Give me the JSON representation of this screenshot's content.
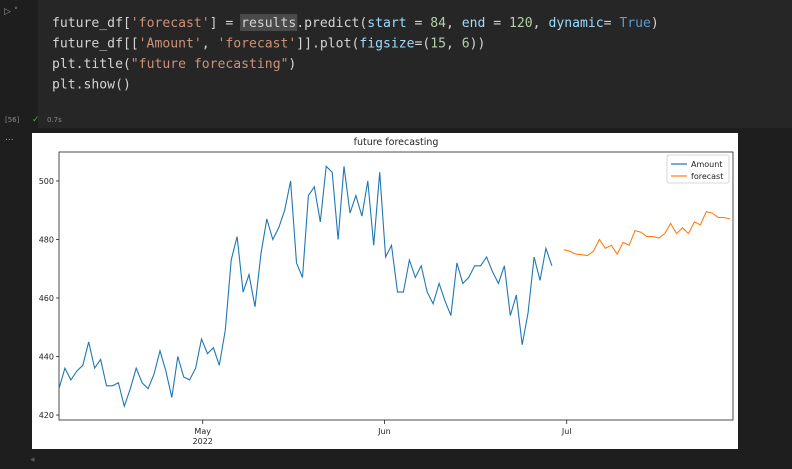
{
  "cell": {
    "lines": [
      [
        {
          "text": "future_df[",
          "color": "#d4d4d4"
        },
        {
          "text": "'forecast'",
          "color": "#ce9178"
        },
        {
          "text": "] = ",
          "color": "#d4d4d4"
        },
        {
          "text": "results",
          "color": "#d4d4d4",
          "highlight": true
        },
        {
          "text": ".predict(",
          "color": "#d4d4d4"
        },
        {
          "text": "start",
          "color": "#9cdcfe"
        },
        {
          "text": " = ",
          "color": "#d4d4d4"
        },
        {
          "text": "84",
          "color": "#b5cea8"
        },
        {
          "text": ", ",
          "color": "#d4d4d4"
        },
        {
          "text": "end",
          "color": "#9cdcfe"
        },
        {
          "text": " = ",
          "color": "#d4d4d4"
        },
        {
          "text": "120",
          "color": "#b5cea8"
        },
        {
          "text": ", ",
          "color": "#d4d4d4"
        },
        {
          "text": "dynamic",
          "color": "#9cdcfe"
        },
        {
          "text": "= ",
          "color": "#d4d4d4"
        },
        {
          "text": "True",
          "color": "#569cd6"
        },
        {
          "text": ")",
          "color": "#d4d4d4"
        }
      ],
      [
        {
          "text": "future_df[[",
          "color": "#d4d4d4"
        },
        {
          "text": "'Amount'",
          "color": "#ce9178"
        },
        {
          "text": ", ",
          "color": "#d4d4d4"
        },
        {
          "text": "'forecast'",
          "color": "#ce9178"
        },
        {
          "text": "]].plot(",
          "color": "#d4d4d4"
        },
        {
          "text": "figsize",
          "color": "#9cdcfe"
        },
        {
          "text": "=(",
          "color": "#d4d4d4"
        },
        {
          "text": "15",
          "color": "#b5cea8"
        },
        {
          "text": ", ",
          "color": "#d4d4d4"
        },
        {
          "text": "6",
          "color": "#b5cea8"
        },
        {
          "text": "))",
          "color": "#d4d4d4"
        }
      ],
      [
        {
          "text": "plt.title(",
          "color": "#d4d4d4"
        },
        {
          "text": "\"future forecasting\"",
          "color": "#ce9178"
        },
        {
          "text": ")",
          "color": "#d4d4d4"
        }
      ],
      [
        {
          "text": "plt.show()",
          "color": "#d4d4d4"
        }
      ]
    ],
    "exec_count": "[56]",
    "duration": "0.7s"
  },
  "output_prefix": "...",
  "chart_data": {
    "type": "line",
    "title": "future forecasting",
    "xlim": [
      0,
      113.5
    ],
    "ylim": [
      418.3,
      509.9
    ],
    "yticks": [
      420,
      440,
      460,
      480,
      500
    ],
    "xticks": [
      {
        "value": 24.2,
        "label": "May"
      },
      {
        "value": 54.8,
        "label": "Jun"
      },
      {
        "value": 85.5,
        "label": "Jul"
      }
    ],
    "x_year_label": "2022",
    "legend": "upper right",
    "series": [
      {
        "name": "Amount",
        "color": "#1f77b4",
        "x": [
          0,
          1,
          2,
          3,
          4,
          5,
          6,
          7,
          8,
          9,
          10,
          11,
          12,
          13,
          14,
          15,
          16,
          17,
          18,
          19,
          20,
          21,
          22,
          23,
          24,
          25,
          26,
          27,
          28,
          29,
          30,
          31,
          32,
          33,
          34,
          35,
          36,
          37,
          38,
          39,
          40,
          41,
          42,
          43,
          44,
          45,
          46,
          47,
          48,
          49,
          50,
          51,
          52,
          53,
          54,
          55,
          56,
          57,
          58,
          59,
          60,
          61,
          62,
          63,
          64,
          65,
          66,
          67,
          68,
          69,
          70,
          71,
          72,
          73,
          74,
          75,
          76,
          77,
          78,
          79,
          80,
          81,
          82,
          83
        ],
        "values": [
          429,
          436,
          432,
          435,
          437,
          445,
          436,
          439,
          430,
          430,
          431,
          423,
          429,
          436,
          431,
          429,
          434,
          442,
          435,
          426,
          440,
          433,
          432,
          436,
          446,
          441,
          443,
          437,
          449,
          473,
          481,
          462,
          468,
          457,
          475,
          487,
          480,
          484,
          490,
          500,
          472,
          467,
          495,
          498,
          486,
          505,
          503,
          480,
          505,
          489,
          495,
          488,
          500,
          478,
          503,
          474,
          478,
          462,
          462,
          473,
          467,
          471,
          462,
          458,
          465,
          459,
          454,
          472,
          465,
          467,
          471,
          471,
          474,
          469,
          465,
          471,
          454,
          461,
          444,
          455,
          474,
          466,
          477,
          471
        ]
      },
      {
        "name": "forecast",
        "color": "#ff7f0e",
        "x": [
          85,
          86,
          87,
          88,
          89,
          90,
          91,
          92,
          93,
          94,
          95,
          96,
          97,
          98,
          99,
          100,
          101,
          102,
          103,
          104,
          105,
          106,
          107,
          108,
          109,
          110,
          111,
          112,
          113
        ],
        "values": [
          476.5,
          476,
          475,
          474.8,
          474.5,
          476,
          480,
          477,
          478,
          475,
          479,
          478,
          483,
          482.5,
          481,
          481,
          480.5,
          482,
          485.5,
          482,
          484,
          482,
          486,
          485,
          489.5,
          489,
          487.5,
          487.5,
          487
        ]
      }
    ]
  }
}
